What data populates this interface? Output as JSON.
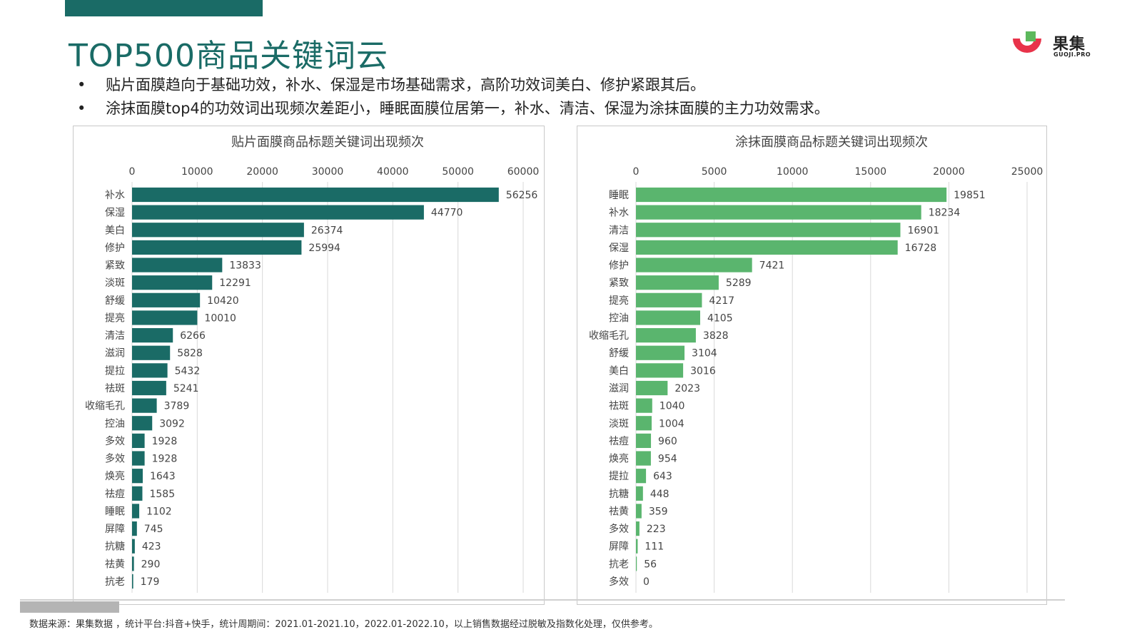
{
  "page": {
    "title": "TOP500商品关键词云",
    "bullets": [
      "贴片面膜趋向于基础功效，补水、保湿是市场基础需求，高阶功效词美白、修护紧跟其后。",
      "涂抹面膜top4的功效词出现频次差距小，睡眠面膜位居第一，补水、清洁、保湿为涂抹面膜的主力功效需求。"
    ],
    "logo": {
      "name": "果集",
      "sub": "GUOJI.PRO"
    },
    "footer": "数据来源：果集数据 ，统计平台:抖音+快手，统计周期间：2021.01-2021.10，2022.01-2022.10，以上销售数据经过脱敏及指数化处理，仅供参考。",
    "colors": {
      "brand": "#1a6b66",
      "left_bar": "#1a6b66",
      "right_bar": "#5ab56e",
      "logo_red": "#e8334a",
      "logo_green": "#5cb85c"
    }
  },
  "chart_data": [
    {
      "type": "bar",
      "orientation": "horizontal",
      "title": "贴片面膜商品标题关键词出现频次",
      "categories": [
        "补水",
        "保湿",
        "美白",
        "修护",
        "紧致",
        "淡斑",
        "舒缓",
        "提亮",
        "清洁",
        "滋润",
        "提拉",
        "祛斑",
        "收缩毛孔",
        "控油",
        "多效",
        "多效",
        "焕亮",
        "祛痘",
        "睡眠",
        "屏障",
        "抗糖",
        "祛黄",
        "抗老"
      ],
      "values": [
        56256,
        44770,
        26374,
        25994,
        13833,
        12291,
        10420,
        10010,
        6266,
        5828,
        5432,
        5241,
        3789,
        3092,
        1928,
        1928,
        1643,
        1585,
        1102,
        745,
        423,
        290,
        179
      ],
      "xlim": [
        0,
        60000
      ],
      "ticks": [
        0,
        10000,
        20000,
        30000,
        40000,
        50000,
        60000
      ],
      "axis_position": "top",
      "grid": true,
      "data_labels": true
    },
    {
      "type": "bar",
      "orientation": "horizontal",
      "title": "涂抹面膜商品标题关键词出现频次",
      "categories": [
        "睡眠",
        "补水",
        "清洁",
        "保湿",
        "修护",
        "紧致",
        "提亮",
        "控油",
        "收缩毛孔",
        "舒缓",
        "美白",
        "滋润",
        "祛斑",
        "淡斑",
        "祛痘",
        "焕亮",
        "提拉",
        "抗糖",
        "祛黄",
        "多效",
        "屏障",
        "抗老",
        "多效"
      ],
      "values": [
        19851,
        18234,
        16901,
        16728,
        7421,
        5289,
        4217,
        4105,
        3828,
        3104,
        3016,
        2023,
        1040,
        1004,
        960,
        954,
        643,
        448,
        359,
        223,
        111,
        56,
        0
      ],
      "xlim": [
        0,
        25000
      ],
      "ticks": [
        0,
        5000,
        10000,
        15000,
        20000,
        25000
      ],
      "axis_position": "top",
      "grid": true,
      "data_labels": true
    }
  ]
}
